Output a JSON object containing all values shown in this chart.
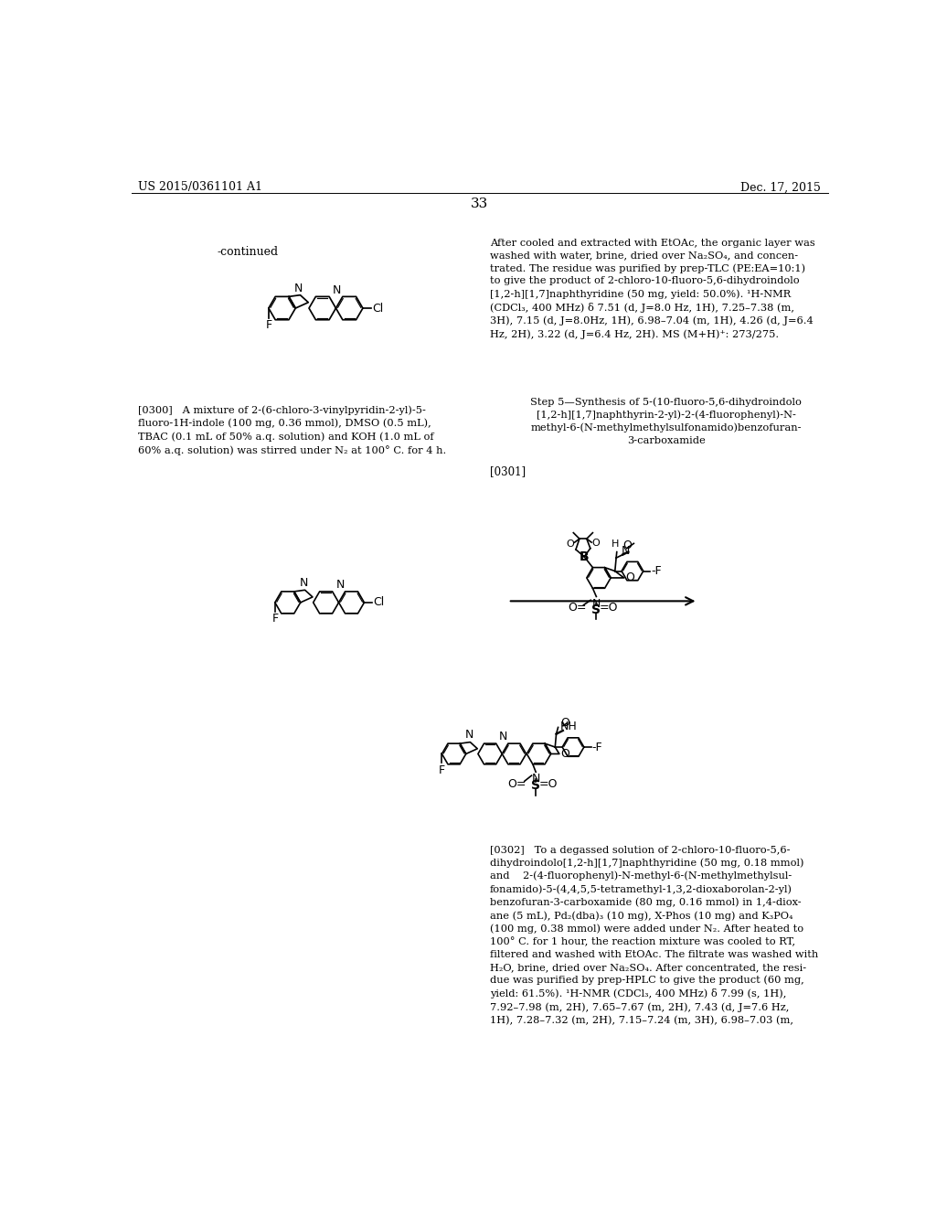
{
  "page_number": "33",
  "patent_number": "US 2015/0361101 A1",
  "patent_date": "Dec. 17, 2015",
  "background_color": "#ffffff",
  "text_color": "#000000",
  "continued_label": "-continued",
  "right_text_block1": "After cooled and extracted with EtOAc, the organic layer was\nwashed with water, brine, dried over Na₂SO₄, and concen-\ntrated. The residue was purified by prep-TLC (PE:EA=10:1)\nto give the product of 2-chloro-10-fluoro-5,6-dihydroindolo\n[1,2-h][1,7]naphthyridine (50 mg, yield: 50.0%). ¹H-NMR\n(CDCl₃, 400 MHz) δ 7.51 (d, J=8.0 Hz, 1H), 7.25–7.38 (m,\n3H), 7.15 (d, J=8.0Hz, 1H), 6.98–7.04 (m, 1H), 4.26 (d, J=6.4\nHz, 2H), 3.22 (d, J=6.4 Hz, 2H). MS (M+H)⁺: 273/275.",
  "step5_text": "Step 5—Synthesis of 5-(10-fluoro-5,6-dihydroindolo\n[1,2-h][1,7]naphthyrin-2-yl)-2-(4-fluorophenyl)-N-\nmethyl-6-(N-methylmethylsulfonamido)benzofuran-\n3-carboxamide",
  "ref0301": "[0301]",
  "ref0300_text": "[0300]   A mixture of 2-(6-chloro-3-vinylpyridin-2-yl)-5-\nfluoro-1H-indole (100 mg, 0.36 mmol), DMSO (0.5 mL),\nTBAC (0.1 mL of 50% a.q. solution) and KOH (1.0 mL of\n60% a.q. solution) was stirred under N₂ at 100° C. for 4 h.",
  "ref0302_text": "[0302]   To a degassed solution of 2-chloro-10-fluoro-5,6-\ndihydroindolo[1,2-h][1,7]naphthyridine (50 mg, 0.18 mmol)\nand    2-(4-fluorophenyl)-N-methyl-6-(N-methylmethylsul-\nfonamido)-5-(4,4,5,5-tetramethyl-1,3,2-dioxaborolan-2-yl)\nbenzofuran-3-carboxamide (80 mg, 0.16 mmol) in 1,4-diox-\nane (5 mL), Pd₂(dba)₃ (10 mg), X-Phos (10 mg) and K₃PO₄\n(100 mg, 0.38 mmol) were added under N₂. After heated to\n100° C. for 1 hour, the reaction mixture was cooled to RT,\nfiltered and washed with EtOAc. The filtrate was washed with\nH₂O, brine, dried over Na₂SO₄. After concentrated, the resi-\ndue was purified by prep-HPLC to give the product (60 mg,\nyield: 61.5%). ¹H-NMR (CDCl₃, 400 MHz) δ 7.99 (s, 1H),\n7.92–7.98 (m, 2H), 7.65–7.67 (m, 2H), 7.43 (d, J=7.6 Hz,\n1H), 7.28–7.32 (m, 2H), 7.15–7.24 (m, 3H), 6.98–7.03 (m,"
}
